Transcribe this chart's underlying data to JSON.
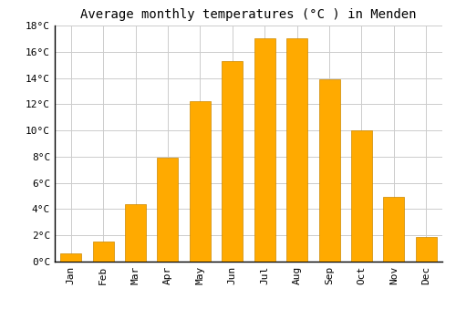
{
  "title": "Average monthly temperatures (°C ) in Menden",
  "months": [
    "Jan",
    "Feb",
    "Mar",
    "Apr",
    "May",
    "Jun",
    "Jul",
    "Aug",
    "Sep",
    "Oct",
    "Nov",
    "Dec"
  ],
  "temperatures": [
    0.6,
    1.5,
    4.4,
    7.9,
    12.2,
    15.3,
    17.0,
    17.0,
    13.9,
    10.0,
    4.9,
    1.9
  ],
  "bar_color": "#FFAA00",
  "bar_edge_color": "#CC8800",
  "ylim": [
    0,
    18
  ],
  "yticks": [
    0,
    2,
    4,
    6,
    8,
    10,
    12,
    14,
    16,
    18
  ],
  "ytick_labels": [
    "0°C",
    "2°C",
    "4°C",
    "6°C",
    "8°C",
    "10°C",
    "12°C",
    "14°C",
    "16°C",
    "18°C"
  ],
  "background_color": "#ffffff",
  "grid_color": "#cccccc",
  "title_fontsize": 10,
  "tick_fontsize": 8,
  "font_family": "monospace",
  "bar_width": 0.65
}
